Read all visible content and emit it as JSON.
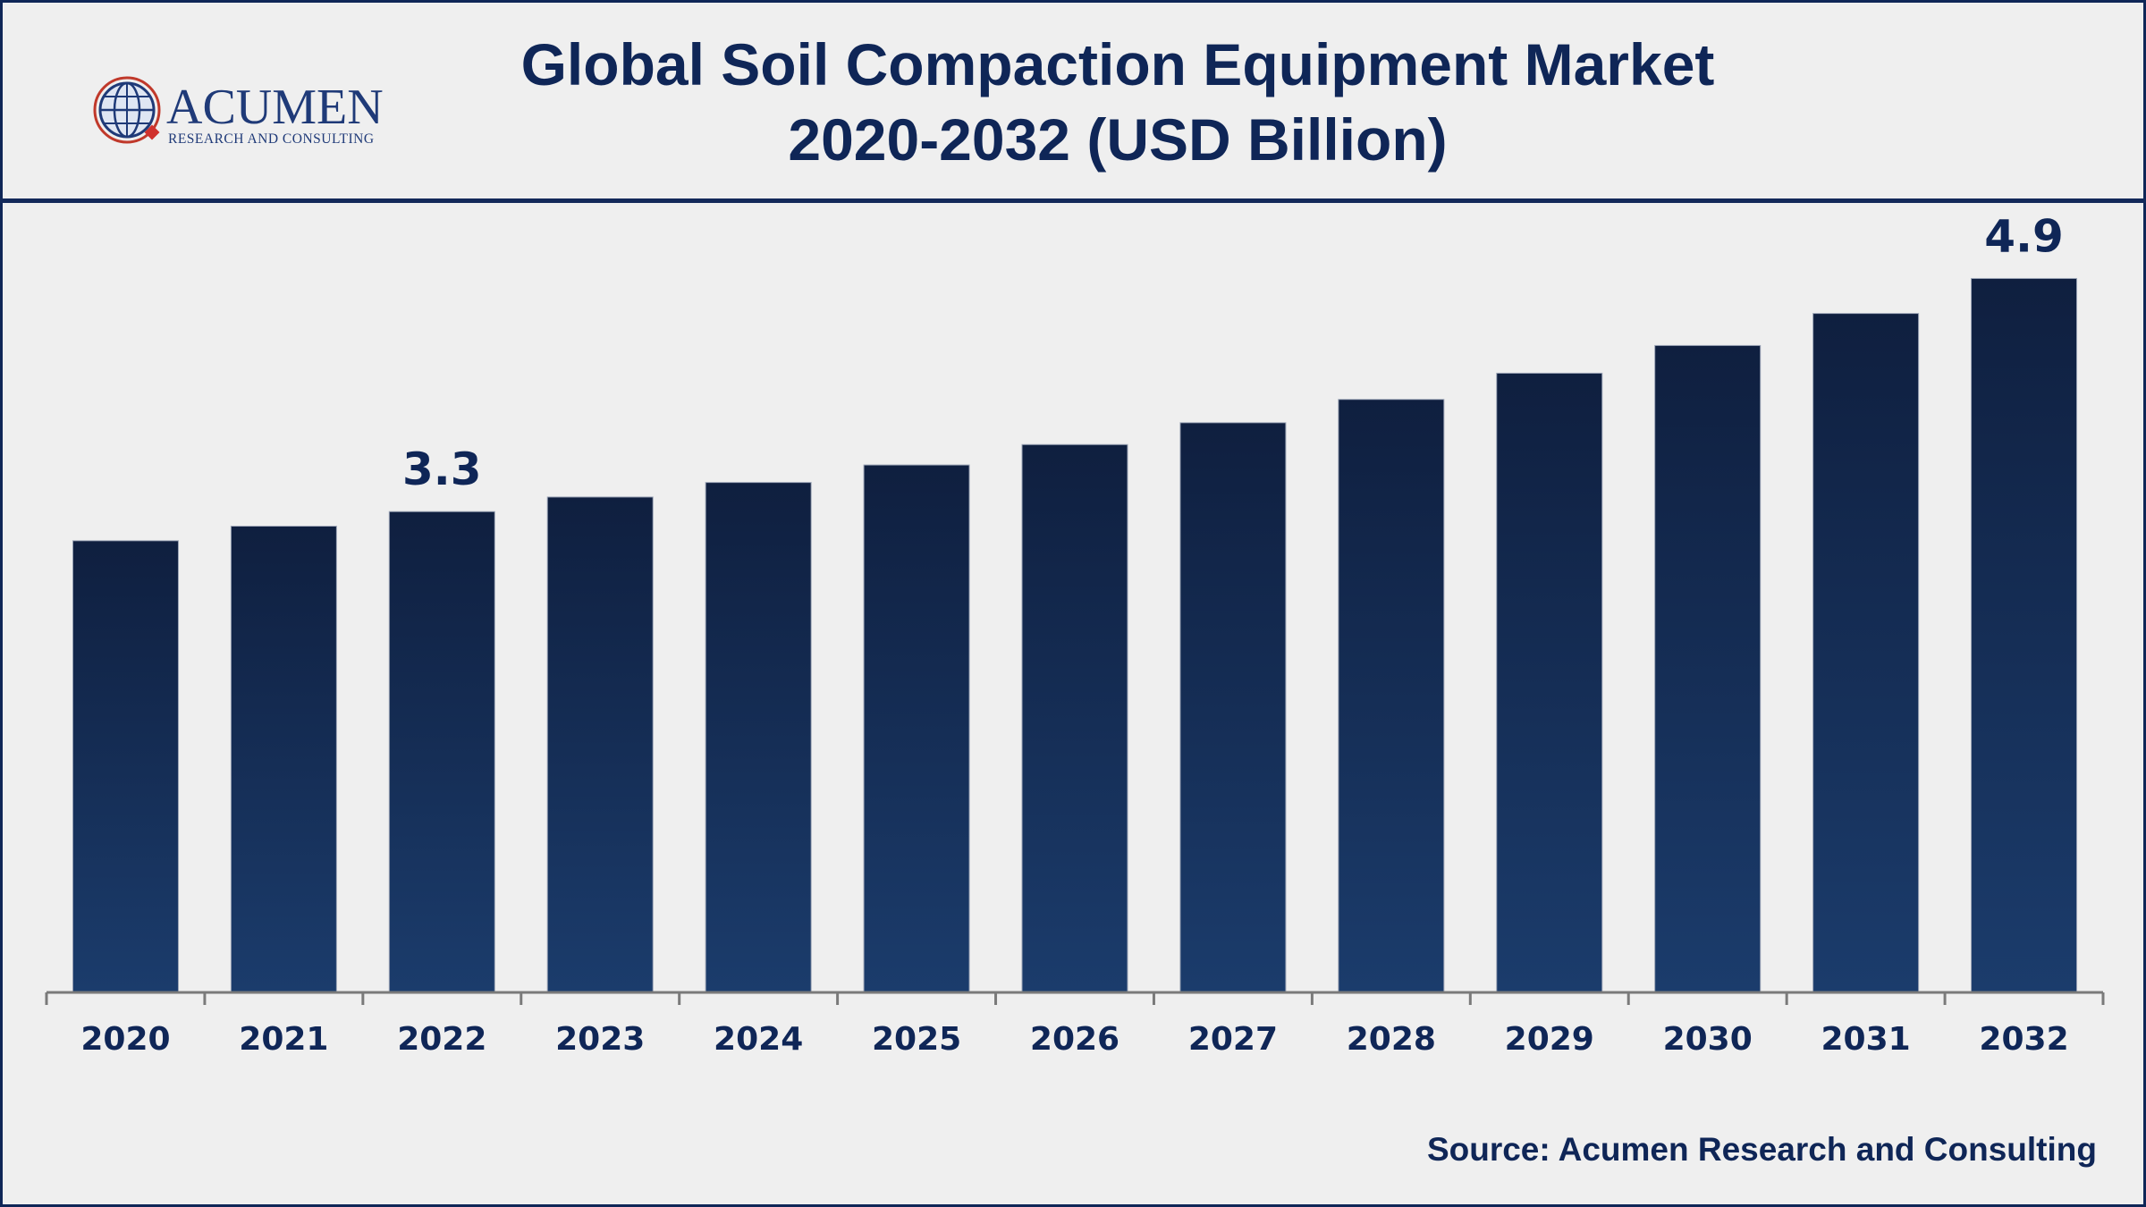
{
  "brand": {
    "name": "ACUMEN",
    "tagline": "RESEARCH AND CONSULTING"
  },
  "header": {
    "title_line1": "Global Soil Compaction Equipment Market",
    "title_line2": "2020-2032 (USD Billion)"
  },
  "source": "Source: Acumen Research and Consulting",
  "colors": {
    "navy": "#0f2657",
    "bar_top": "#0f1f3f",
    "bar_bottom": "#1b3c6c",
    "axis": "#7a7a7a",
    "background": "#efefef"
  },
  "chart_data": {
    "type": "bar",
    "title": "Global Soil Compaction Equipment Market 2020-2032 (USD Billion)",
    "xlabel": "",
    "ylabel": "",
    "ylim": [
      0,
      5.4
    ],
    "grid": false,
    "categories": [
      "2020",
      "2021",
      "2022",
      "2023",
      "2024",
      "2025",
      "2026",
      "2027",
      "2028",
      "2029",
      "2030",
      "2031",
      "2032"
    ],
    "values": [
      3.1,
      3.2,
      3.3,
      3.4,
      3.5,
      3.62,
      3.76,
      3.91,
      4.07,
      4.25,
      4.44,
      4.66,
      4.9
    ],
    "data_labels": [
      {
        "category": "2022",
        "text": "3.3"
      },
      {
        "category": "2032",
        "text": "4.9"
      }
    ]
  }
}
